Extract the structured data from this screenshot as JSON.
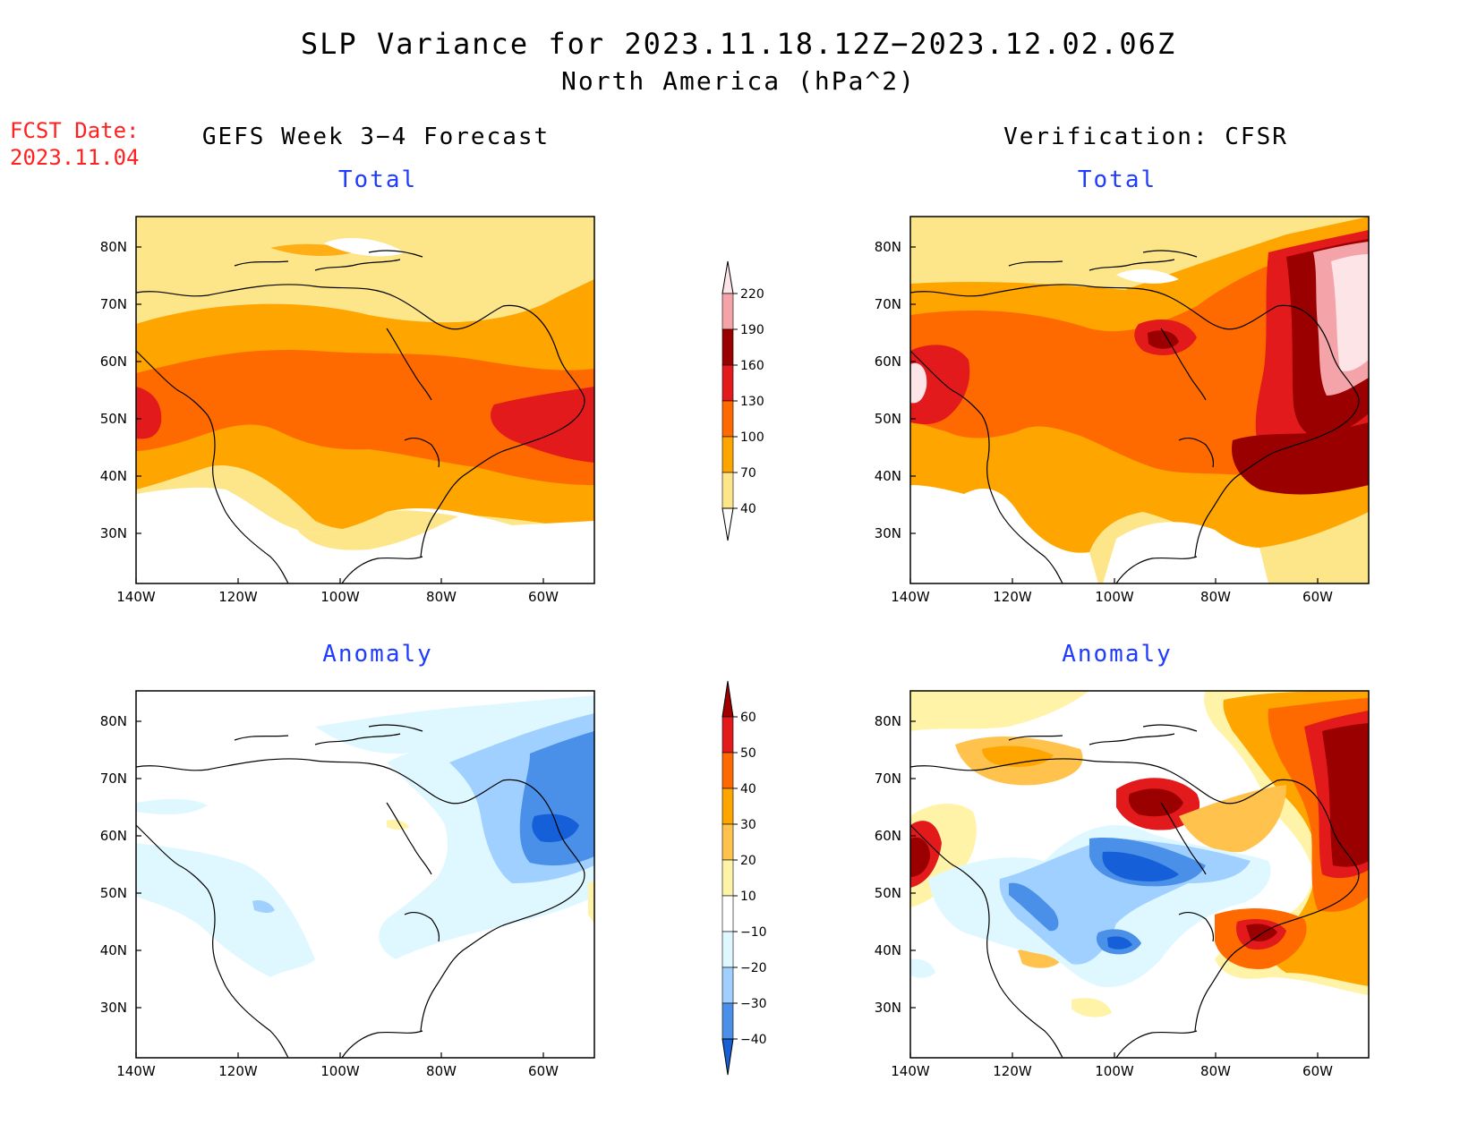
{
  "title": {
    "line1": "SLP Variance for 2023.11.18.12Z−2023.12.02.06Z",
    "line2": "North America (hPa^2)"
  },
  "forecast_date": {
    "label": "FCST Date:",
    "value": "2023.11.04"
  },
  "columns": {
    "left": "GEFS Week 3−4 Forecast",
    "right": "Verification: CFSR"
  },
  "panels": {
    "total_left": "Total",
    "total_right": "Total",
    "anomaly_left": "Anomaly",
    "anomaly_right": "Anomaly"
  },
  "axes": {
    "lon_labels": [
      "140W",
      "120W",
      "100W",
      "80W",
      "60W"
    ],
    "lat_labels": [
      "80N",
      "70N",
      "60N",
      "50N",
      "40N",
      "30N"
    ]
  },
  "colorbars": {
    "total": {
      "levels": [
        "40",
        "70",
        "100",
        "130",
        "160",
        "190",
        "220"
      ],
      "colors": [
        "#ffffff",
        "#fde68a",
        "#ffa500",
        "#ff6a00",
        "#e31a1c",
        "#9b0000",
        "#f4a3a8",
        "#fde4e6"
      ]
    },
    "anomaly": {
      "levels": [
        "60",
        "50",
        "40",
        "30",
        "20",
        "10",
        "−10",
        "−20",
        "−30",
        "−40"
      ],
      "colors": [
        "#a00000",
        "#e31a1c",
        "#ff6a00",
        "#ffa500",
        "#ffc34d",
        "#fff3a8",
        "#ffffff",
        "#dff8ff",
        "#a0d0ff",
        "#4a90e8",
        "#1560d8"
      ]
    }
  }
}
